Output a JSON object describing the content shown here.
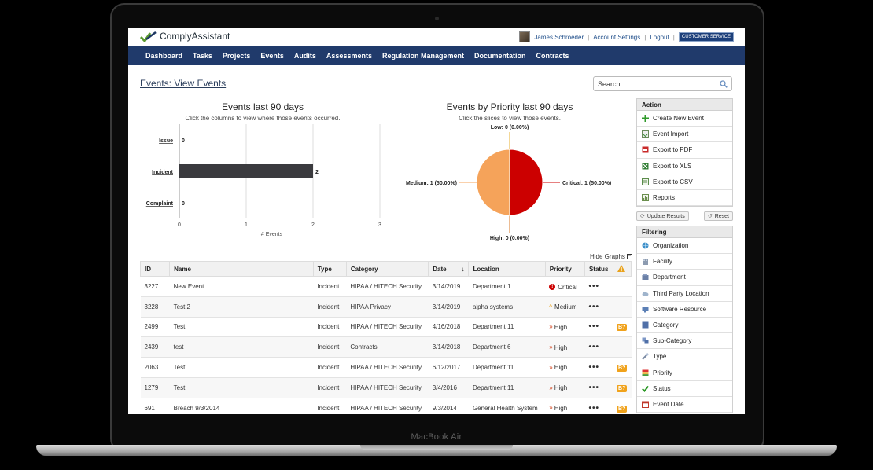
{
  "device_label": "MacBook Air",
  "app": {
    "logo_text": "ComplyAssistant",
    "user_name": "James Schroeder",
    "account_settings": "Account Settings",
    "logout": "Logout",
    "customer_service": "CUSTOMER SERVICE",
    "separator": "|"
  },
  "nav": [
    "Dashboard",
    "Tasks",
    "Projects",
    "Events",
    "Audits",
    "Assessments",
    "Regulation Management",
    "Documentation",
    "Contracts"
  ],
  "page_title": "Events: View Events",
  "search": {
    "placeholder": "Search"
  },
  "bar_chart": {
    "title": "Events last 90 days",
    "subtitle": "Click the columns to view where those events occurred."
  },
  "pie_chart": {
    "title": "Events by Priority last 90 days",
    "subtitle": "Click the slices to view those events."
  },
  "chart_data": [
    {
      "type": "bar",
      "orientation": "horizontal",
      "title": "Events last 90 days",
      "subtitle": "Click the columns to view where those events occurred.",
      "categories": [
        "Issue",
        "Incident",
        "Complaint"
      ],
      "values": [
        0,
        2,
        0
      ],
      "xlabel": "# Events",
      "xlim": [
        0,
        3
      ],
      "xticks": [
        "0",
        "1",
        "2",
        "3"
      ],
      "grid": true,
      "color": "#3a3a3e"
    },
    {
      "type": "pie",
      "title": "Events by Priority last 90 days",
      "subtitle": "Click the slices to view those events.",
      "slices": [
        {
          "label": "Low: 0 (0.00%)",
          "value": 0,
          "color": "#e9b230"
        },
        {
          "label": "Critical: 1 (50.00%)",
          "value": 1,
          "color": "#cc0000"
        },
        {
          "label": "High: 0 (0.00%)",
          "value": 0,
          "color": "#d97a2a"
        },
        {
          "label": "Medium: 1 (50.00%)",
          "value": 1,
          "color": "#f5a35a"
        }
      ]
    }
  ],
  "hide_graphs": "Hide Graphs",
  "table": {
    "headers": [
      "ID",
      "Name",
      "Type",
      "Category",
      "Date",
      "Location",
      "Priority",
      "Status"
    ],
    "rows": [
      {
        "id": "3227",
        "name": "New Event",
        "type": "Incident",
        "category": "HIPAA / HITECH Security",
        "date": "3/14/2019",
        "location": "Department 1",
        "priority": "Critical",
        "status": "•••",
        "badge": ""
      },
      {
        "id": "3228",
        "name": "Test 2",
        "type": "Incident",
        "category": "HIPAA Privacy",
        "date": "3/14/2019",
        "location": "alpha systems",
        "priority": "Medium",
        "status": "•••",
        "badge": ""
      },
      {
        "id": "2499",
        "name": "Test",
        "type": "Incident",
        "category": "HIPAA / HITECH Security",
        "date": "4/16/2018",
        "location": "Department 11",
        "priority": "High",
        "status": "•••",
        "badge": "B?"
      },
      {
        "id": "2439",
        "name": "test",
        "type": "Incident",
        "category": "Contracts",
        "date": "3/14/2018",
        "location": "Department 6",
        "priority": "High",
        "status": "•••",
        "badge": ""
      },
      {
        "id": "2063",
        "name": "Test",
        "type": "Incident",
        "category": "HIPAA / HITECH Security",
        "date": "6/12/2017",
        "location": "Department 11",
        "priority": "High",
        "status": "•••",
        "badge": "B?"
      },
      {
        "id": "1279",
        "name": "Test",
        "type": "Incident",
        "category": "HIPAA / HITECH Security",
        "date": "3/4/2016",
        "location": "Department 11",
        "priority": "High",
        "status": "•••",
        "badge": "B?"
      },
      {
        "id": "691",
        "name": "Breach 9/3/2014",
        "type": "Incident",
        "category": "HIPAA / HITECH Security",
        "date": "9/3/2014",
        "location": "General Health System",
        "priority": "High",
        "status": "•••",
        "badge": "B?"
      }
    ]
  },
  "action_panel": {
    "title": "Action",
    "items": [
      "Create New Event",
      "Event Import",
      "Export to PDF",
      "Export to XLS",
      "Export to CSV",
      "Reports"
    ]
  },
  "buttons": {
    "update": "Update Results",
    "reset": "Reset"
  },
  "filter_panel": {
    "title": "Filtering",
    "items": [
      "Organization",
      "Facility",
      "Department",
      "Third Party Location",
      "Software Resource",
      "Category",
      "Sub-Category",
      "Type",
      "Priority",
      "Status",
      "Event Date"
    ]
  }
}
